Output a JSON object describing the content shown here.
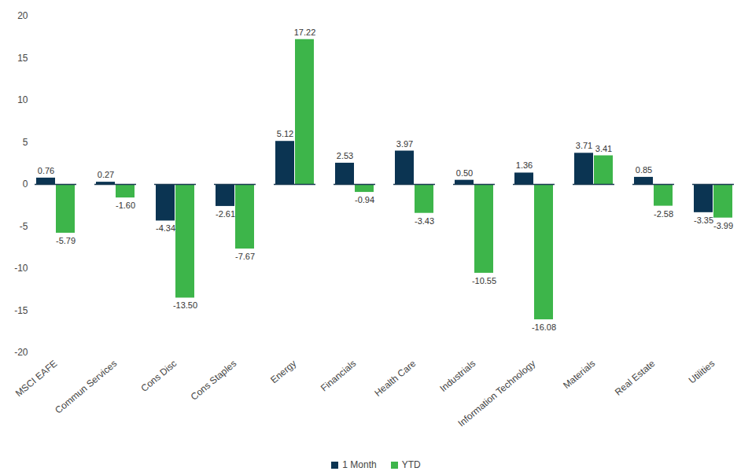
{
  "chart_data": {
    "type": "bar",
    "categories": [
      "MSCI EAFE",
      "Commun Services",
      "Cons Disc",
      "Cons Staples",
      "Energy",
      "Financials",
      "Health Care",
      "Industrials",
      "Information Technology",
      "Materials",
      "Real Estate",
      "Utilities"
    ],
    "series": [
      {
        "name": "1 Month",
        "color": "#0b3452",
        "values": [
          0.76,
          0.27,
          -4.34,
          -2.61,
          5.12,
          2.53,
          3.97,
          0.5,
          1.36,
          3.71,
          0.85,
          -3.35
        ],
        "value_labels": [
          "0.76",
          "0.27",
          "-4.34",
          "-2.61",
          "5.12",
          "2.53",
          "3.97",
          "0.50",
          "1.36",
          "3.71",
          "0.85",
          "-3.35"
        ]
      },
      {
        "name": "YTD",
        "color": "#3db54a",
        "values": [
          -5.79,
          -1.6,
          -13.5,
          -7.67,
          17.22,
          -0.94,
          -3.43,
          -10.55,
          -16.08,
          3.41,
          -2.58,
          -3.99
        ],
        "value_labels": [
          "-5.79",
          "-1.60",
          "-13.50",
          "-7.67",
          "17.22",
          "-0.94",
          "-3.43",
          "-10.55",
          "-16.08",
          "3.41",
          "-2.58",
          "-3.99"
        ]
      }
    ],
    "ylim": [
      -20,
      20
    ],
    "yticks": [
      -20,
      -15,
      -10,
      -5,
      0,
      5,
      10,
      15,
      20
    ],
    "grid": false,
    "legend": "bottom",
    "data_labels": true
  }
}
